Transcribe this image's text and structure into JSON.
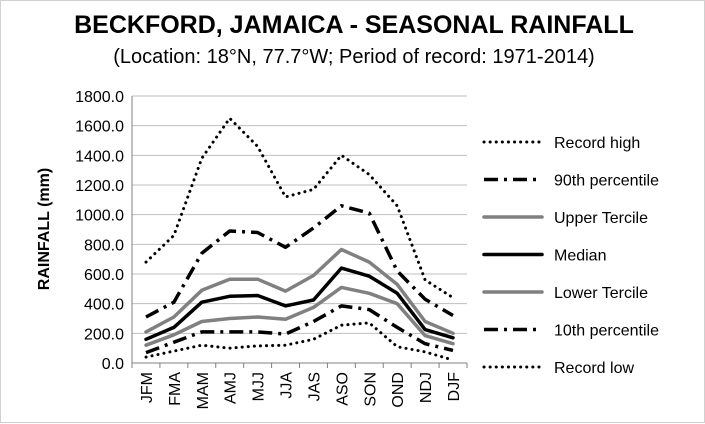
{
  "chart_data": {
    "type": "line",
    "title": "BECKFORD, JAMAICA - SEASONAL RAINFALL",
    "subtitle": "(Location: 18°N, 77.7°W; Period of record: 1971-2014)",
    "xlabel": "",
    "ylabel": "RAINFALL (mm)",
    "ylim": [
      0,
      1800
    ],
    "yticks": [
      "0.0",
      "200.0",
      "400.0",
      "600.0",
      "800.0",
      "1000.0",
      "1200.0",
      "1400.0",
      "1600.0",
      "1800.0"
    ],
    "grid": "horizontal",
    "legend_position": "right",
    "categories": [
      "JFM",
      "FMA",
      "MAM",
      "AMJ",
      "MJJ",
      "JJA",
      "JAS",
      "ASO",
      "SON",
      "OND",
      "NDJ",
      "DJF"
    ],
    "series": [
      {
        "name": "Record high",
        "style": "dotted",
        "color": "#000000",
        "values": [
          680,
          860,
          1380,
          1650,
          1460,
          1120,
          1170,
          1400,
          1270,
          1060,
          560,
          440
        ]
      },
      {
        "name": "90th percentile",
        "style": "dashdot",
        "color": "#000000",
        "values": [
          310,
          410,
          740,
          890,
          880,
          780,
          910,
          1060,
          1010,
          620,
          430,
          320
        ]
      },
      {
        "name": "Upper Tercile",
        "style": "solid",
        "color": "#808080",
        "values": [
          210,
          310,
          490,
          565,
          565,
          485,
          590,
          765,
          680,
          530,
          280,
          200
        ]
      },
      {
        "name": "Median",
        "style": "solid",
        "color": "#000000",
        "values": [
          160,
          240,
          410,
          450,
          455,
          385,
          425,
          640,
          585,
          470,
          225,
          170
        ]
      },
      {
        "name": "Lower Tercile",
        "style": "solid",
        "color": "#808080",
        "values": [
          120,
          190,
          280,
          300,
          310,
          295,
          375,
          510,
          470,
          400,
          185,
          130
        ]
      },
      {
        "name": "10th percentile",
        "style": "dashdot",
        "color": "#000000",
        "values": [
          70,
          140,
          210,
          210,
          210,
          195,
          280,
          385,
          360,
          240,
          130,
          85
        ]
      },
      {
        "name": "Record low",
        "style": "dotted",
        "color": "#000000",
        "values": [
          40,
          80,
          120,
          100,
          115,
          120,
          160,
          255,
          270,
          110,
          75,
          20
        ]
      }
    ]
  }
}
